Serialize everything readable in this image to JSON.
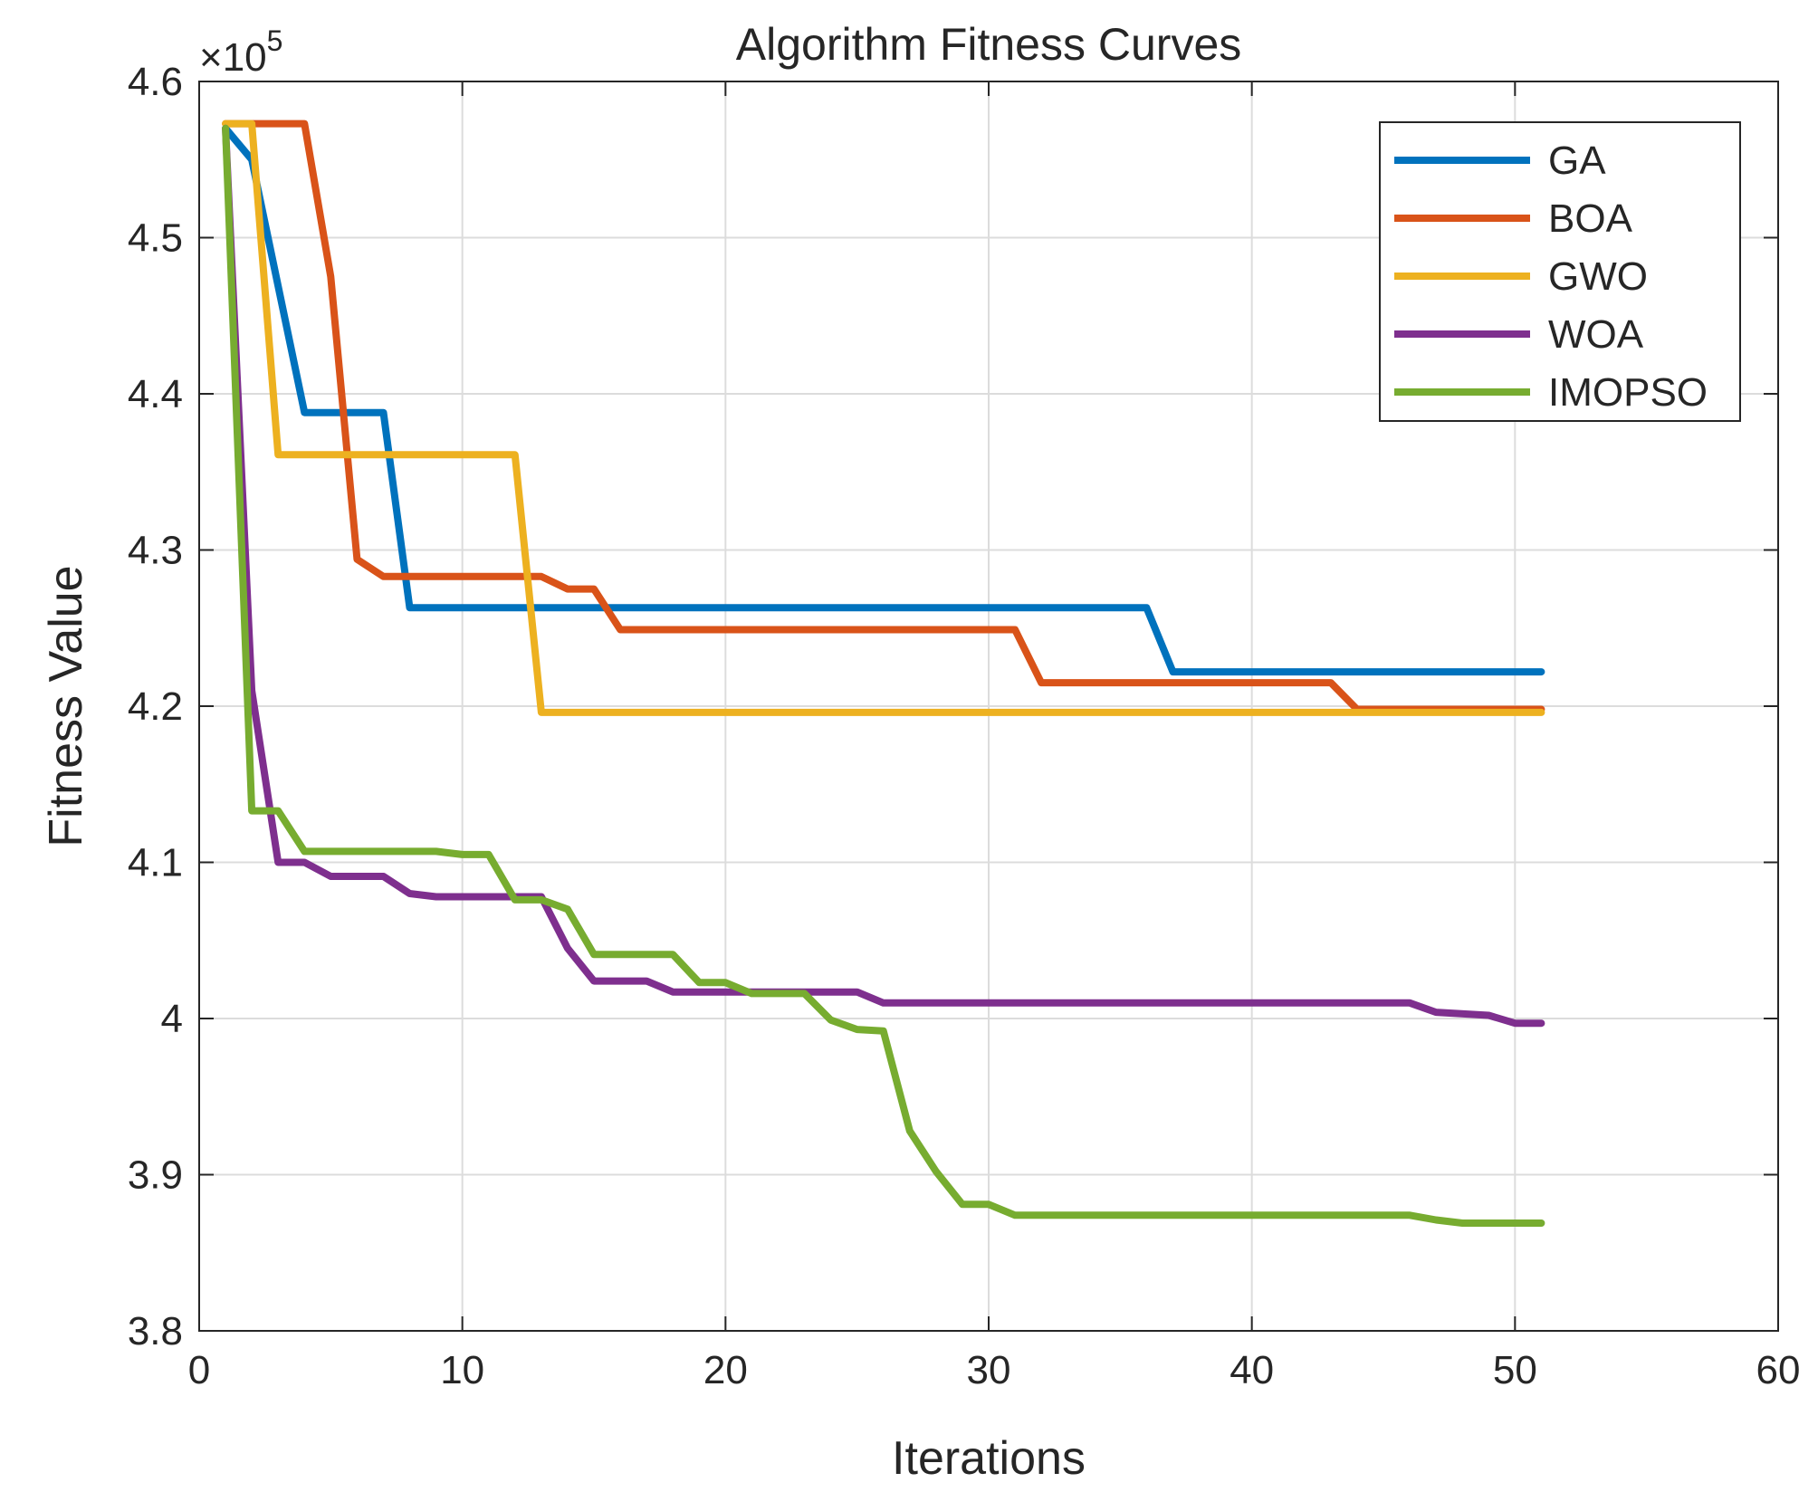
{
  "chart_data": {
    "type": "line",
    "title": "Algorithm Fitness Curves",
    "xlabel": "Iterations",
    "ylabel": "Fitness Value",
    "xlim": [
      0,
      60
    ],
    "ylim": [
      380000,
      460000
    ],
    "xticks": [
      0,
      10,
      20,
      30,
      40,
      50,
      60
    ],
    "yticks": [
      380000,
      390000,
      400000,
      410000,
      420000,
      430000,
      440000,
      450000,
      460000
    ],
    "ytick_labels": [
      "3.8",
      "3.9",
      "4",
      "4.1",
      "4.2",
      "4.3",
      "4.4",
      "4.5",
      "4.6"
    ],
    "y_exponent_label": "×10",
    "y_exponent_power": "5",
    "grid": true,
    "legend_position": "top-right",
    "series": [
      {
        "name": "GA",
        "color": "#0072BD",
        "x": [
          1,
          2,
          4,
          7,
          8,
          36,
          37,
          51
        ],
        "y": [
          457000,
          455000,
          438800,
          438800,
          426300,
          426300,
          422200,
          422200
        ]
      },
      {
        "name": "BOA",
        "color": "#D95319",
        "x": [
          1,
          4,
          5,
          6,
          7,
          13,
          14,
          15,
          16,
          31,
          32,
          43,
          44,
          51
        ],
        "y": [
          457300,
          457300,
          447500,
          429400,
          428300,
          428300,
          427500,
          427500,
          424900,
          424900,
          421500,
          421500,
          419800,
          419800
        ]
      },
      {
        "name": "GWO",
        "color": "#EDB120",
        "x": [
          1,
          2,
          3,
          12,
          13,
          51
        ],
        "y": [
          457300,
          457300,
          436100,
          436100,
          419600,
          419600
        ]
      },
      {
        "name": "WOA",
        "color": "#7E2F8E",
        "x": [
          1,
          2,
          3,
          4,
          5,
          7,
          8,
          9,
          13,
          14,
          15,
          17,
          18,
          25,
          26,
          46,
          47,
          49,
          50,
          51
        ],
        "y": [
          457000,
          421000,
          410000,
          410000,
          409100,
          409100,
          408000,
          407800,
          407800,
          404500,
          402400,
          402400,
          401700,
          401700,
          401000,
          401000,
          400400,
          400200,
          399700,
          399700
        ]
      },
      {
        "name": "IMOPSO",
        "color": "#77AC30",
        "x": [
          1,
          2,
          3,
          4,
          9,
          10,
          11,
          12,
          13,
          14,
          15,
          18,
          19,
          20,
          21,
          23,
          24,
          25,
          26,
          27,
          28,
          29,
          30,
          31,
          46,
          47,
          48,
          51
        ],
        "y": [
          457000,
          413300,
          413300,
          410700,
          410700,
          410500,
          410500,
          407600,
          407600,
          407000,
          404100,
          404100,
          402300,
          402300,
          401600,
          401600,
          399900,
          399300,
          399200,
          392800,
          390200,
          388100,
          388100,
          387400,
          387400,
          387100,
          386900,
          386900
        ]
      }
    ]
  }
}
